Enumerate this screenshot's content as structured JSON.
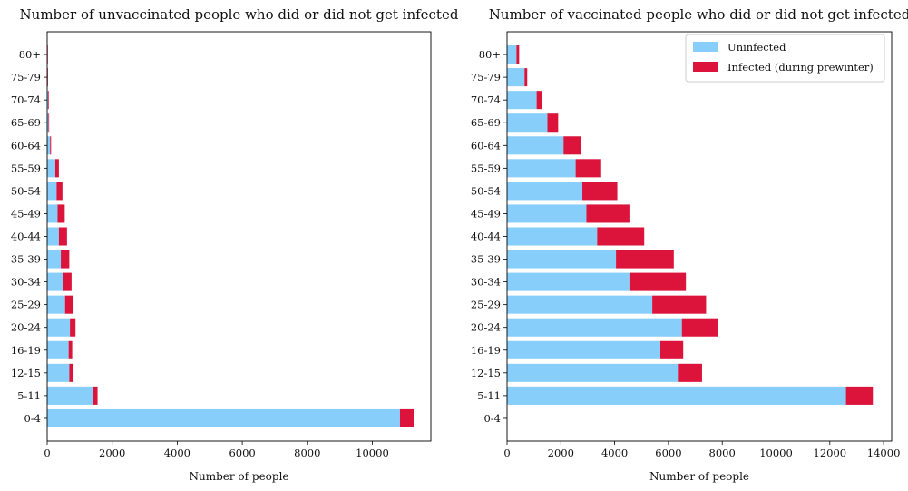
{
  "chart_data": [
    {
      "type": "bar",
      "orientation": "horizontal",
      "stacked": true,
      "title": "Number of unvaccinated people who did or did not get infected",
      "xlabel": "Number of people",
      "ylabel": "",
      "xlim": [
        0,
        11800
      ],
      "xticks": [
        0,
        2000,
        4000,
        6000,
        8000,
        10000
      ],
      "categories": [
        "0-4",
        "5-11",
        "12-15",
        "16-19",
        "20-24",
        "25-29",
        "30-34",
        "35-39",
        "40-44",
        "45-49",
        "50-54",
        "55-59",
        "60-64",
        "65-69",
        "70-74",
        "75-79",
        "80+"
      ],
      "series": [
        {
          "name": "Uninfected",
          "color": "#87CEFA",
          "values": [
            10850,
            1400,
            680,
            660,
            700,
            550,
            480,
            420,
            360,
            320,
            290,
            250,
            90,
            40,
            30,
            10,
            8
          ]
        },
        {
          "name": "Infected (during prewinter)",
          "color": "#DC143C",
          "values": [
            420,
            150,
            130,
            110,
            170,
            260,
            270,
            260,
            250,
            220,
            180,
            110,
            30,
            20,
            20,
            5,
            5
          ]
        }
      ],
      "legend": false
    },
    {
      "type": "bar",
      "orientation": "horizontal",
      "stacked": true,
      "title": "Number of vaccinated people who did or did not get infected",
      "xlabel": "Number of people",
      "ylabel": "",
      "xlim": [
        0,
        14300
      ],
      "xticks": [
        0,
        2000,
        4000,
        6000,
        8000,
        10000,
        12000,
        14000
      ],
      "categories": [
        "0-4",
        "5-11",
        "12-15",
        "16-19",
        "20-24",
        "25-29",
        "30-34",
        "35-39",
        "40-44",
        "45-49",
        "50-54",
        "55-59",
        "60-64",
        "65-69",
        "70-74",
        "75-79",
        "80+"
      ],
      "series": [
        {
          "name": "Uninfected",
          "color": "#87CEFA",
          "values": [
            0,
            12600,
            6350,
            5700,
            6500,
            5400,
            4550,
            4050,
            3350,
            2950,
            2800,
            2550,
            2100,
            1500,
            1100,
            650,
            350
          ]
        },
        {
          "name": "Infected (during prewinter)",
          "color": "#DC143C",
          "values": [
            0,
            1000,
            900,
            850,
            1350,
            2000,
            2100,
            2150,
            1750,
            1600,
            1300,
            950,
            650,
            400,
            200,
            100,
            100
          ]
        }
      ],
      "legend": true,
      "legend_position": "top-right"
    }
  ]
}
